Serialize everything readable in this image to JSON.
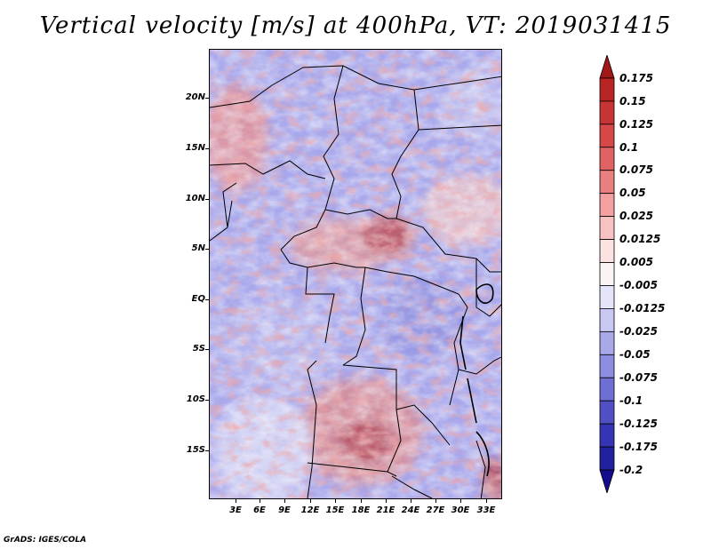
{
  "title": "Vertical velocity [m/s] at 400hPa, VT: 2019031415",
  "credit": "GrADS: IGES/COLA",
  "lat_labels": [
    "20N",
    "15N",
    "10N",
    "5N",
    "EQ",
    "5S",
    "10S",
    "15S"
  ],
  "lon_labels": [
    "3E",
    "6E",
    "9E",
    "12E",
    "15E",
    "18E",
    "21E",
    "24E",
    "27E",
    "30E",
    "33E"
  ],
  "colorbar": {
    "labels": [
      "0.175",
      "0.15",
      "0.125",
      "0.1",
      "0.075",
      "0.05",
      "0.025",
      "0.0125",
      "0.005",
      "-0.005",
      "-0.0125",
      "-0.025",
      "-0.05",
      "-0.075",
      "-0.1",
      "-0.125",
      "-0.175",
      "-0.2"
    ],
    "colors": [
      "#a01818",
      "#b82323",
      "#c83434",
      "#d64848",
      "#e16262",
      "#ea7f7f",
      "#f2a0a0",
      "#f8c2c2",
      "#fde2e2",
      "#fbf4f4",
      "#e4e4fa",
      "#c8c8f3",
      "#a9a9ea",
      "#8c8ce0",
      "#6e6ed4",
      "#5050c4",
      "#3434b4",
      "#2121a0",
      "#130c8c"
    ]
  }
}
